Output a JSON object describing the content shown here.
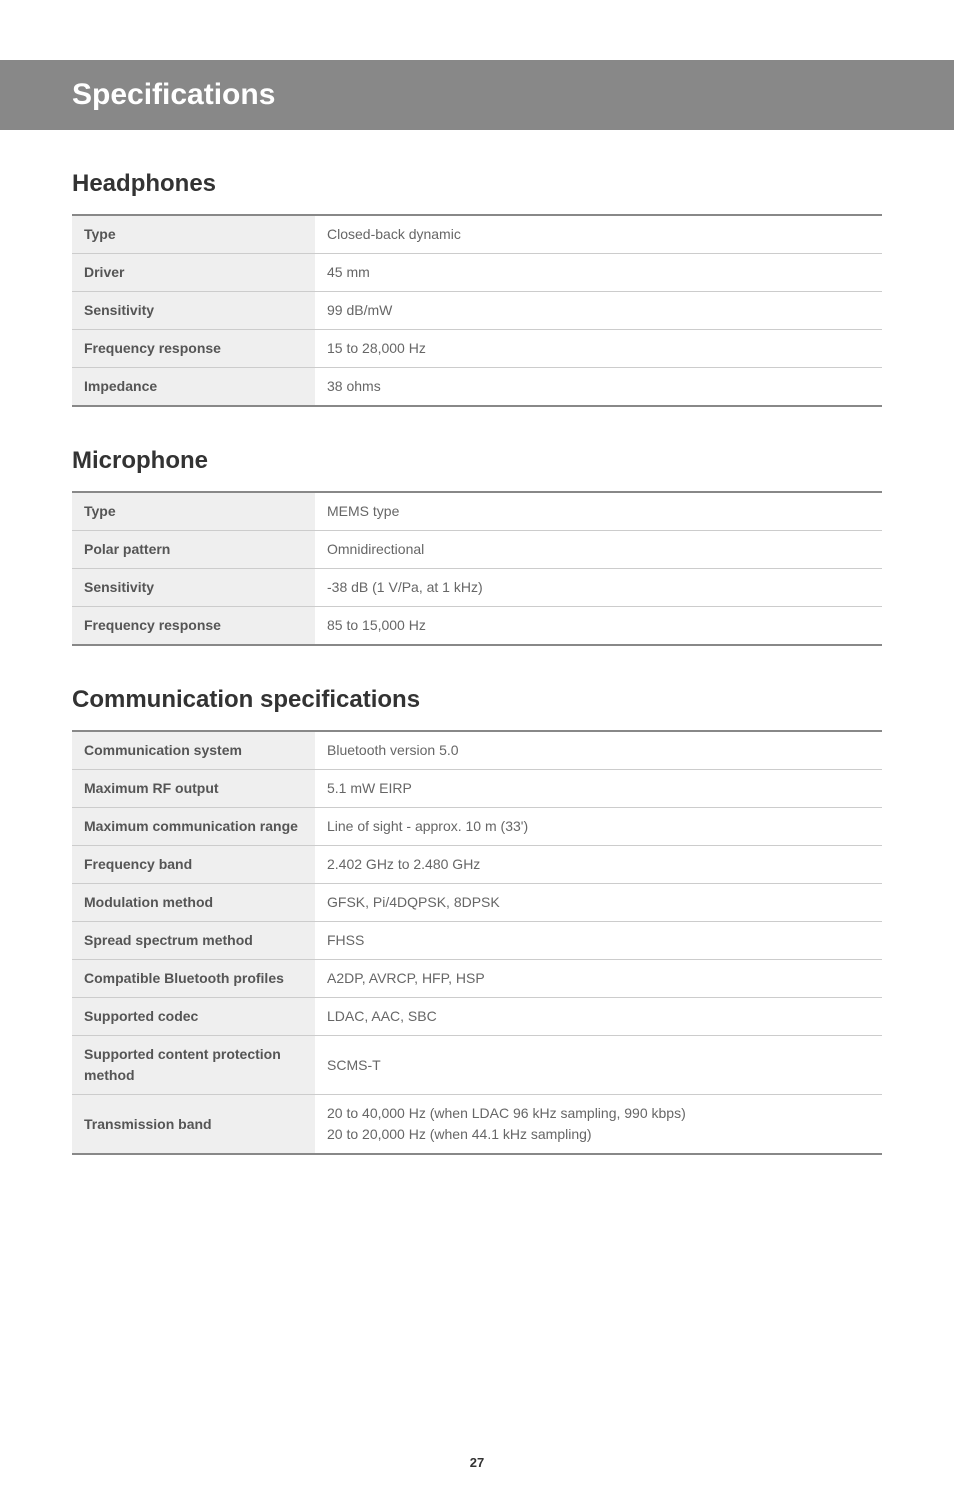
{
  "page_title": "Specifications",
  "page_number": "27",
  "sections": [
    {
      "heading": "Headphones",
      "rows": [
        {
          "label": "Type",
          "value": "Closed-back dynamic"
        },
        {
          "label": "Driver",
          "value": "45 mm"
        },
        {
          "label": "Sensitivity",
          "value": "99 dB/mW"
        },
        {
          "label": "Frequency response",
          "value": "15 to 28,000 Hz"
        },
        {
          "label": "Impedance",
          "value": "38 ohms"
        }
      ]
    },
    {
      "heading": "Microphone",
      "rows": [
        {
          "label": "Type",
          "value": "MEMS type"
        },
        {
          "label": "Polar pattern",
          "value": "Omnidirectional"
        },
        {
          "label": "Sensitivity",
          "value": "-38 dB (1 V/Pa, at 1 kHz)"
        },
        {
          "label": "Frequency response",
          "value": "85 to 15,000 Hz"
        }
      ]
    },
    {
      "heading": "Communication specifications",
      "rows": [
        {
          "label": "Communication system",
          "value": "Bluetooth version 5.0"
        },
        {
          "label": "Maximum RF output",
          "value": "5.1 mW EIRP"
        },
        {
          "label": "Maximum communication range",
          "value": "Line of sight - approx. 10 m (33')"
        },
        {
          "label": "Frequency band",
          "value": "2.402 GHz to 2.480 GHz"
        },
        {
          "label": "Modulation method",
          "value": "GFSK, Pi/4DQPSK, 8DPSK"
        },
        {
          "label": "Spread spectrum method",
          "value": "FHSS"
        },
        {
          "label": "Compatible Bluetooth profiles",
          "value": "A2DP, AVRCP, HFP, HSP"
        },
        {
          "label": "Supported codec",
          "value": "LDAC, AAC, SBC"
        },
        {
          "label": "Supported content protection method",
          "value": "SCMS-T"
        },
        {
          "label": "Transmission band",
          "value": "20 to 40,000 Hz (when LDAC 96 kHz sampling, 990 kbps)\n20 to 20,000 Hz (when 44.1 kHz sampling)"
        }
      ]
    }
  ],
  "colors": {
    "title_bar_bg": "#888888",
    "title_bar_text": "#ffffff",
    "heading_text": "#333333",
    "label_bg": "#efefef",
    "label_text": "#555555",
    "value_text": "#666666",
    "table_border": "#888888",
    "row_border": "#cccccc"
  }
}
